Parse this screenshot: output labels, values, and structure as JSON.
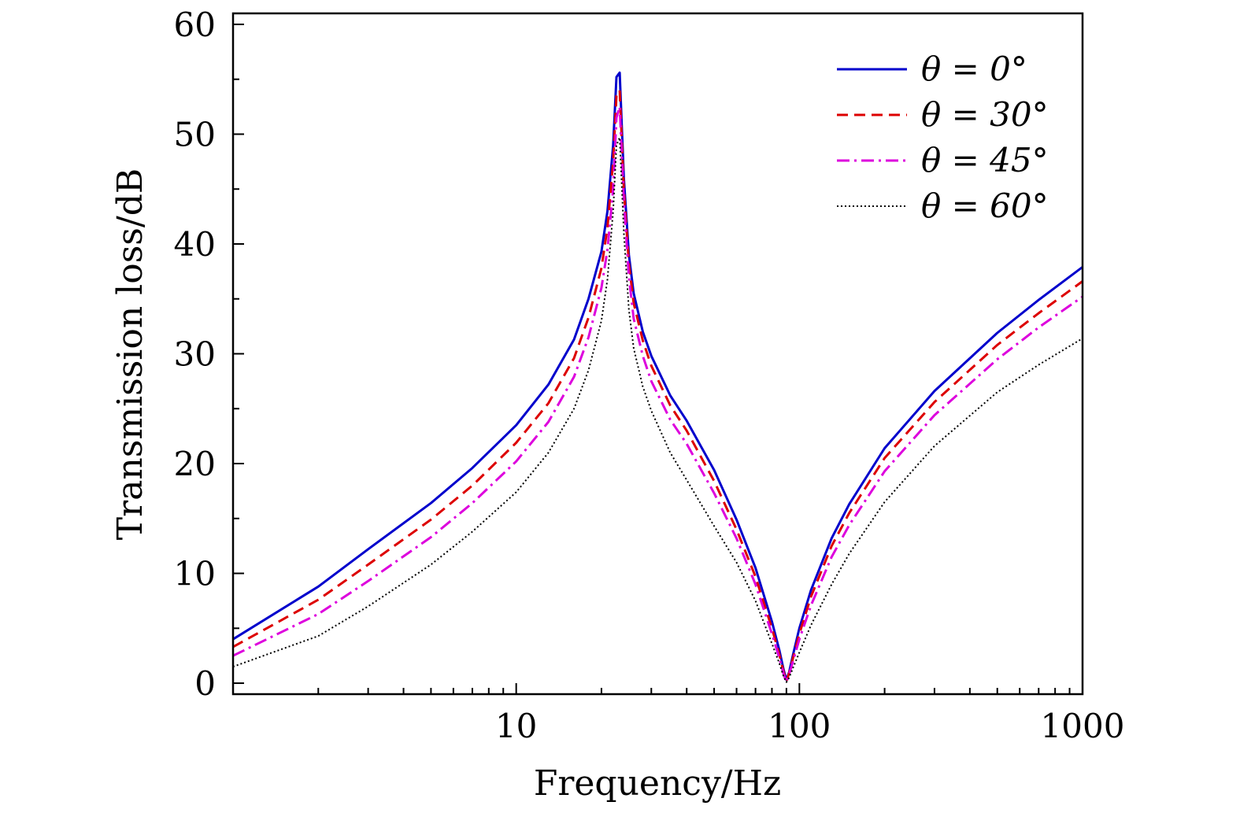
{
  "chart_data": {
    "type": "line",
    "title": "",
    "xlabel": "Frequency/Hz",
    "ylabel": "Transmission loss/dB",
    "x_scale": "log",
    "xlim": [
      1,
      1000
    ],
    "ylim": [
      -1,
      61
    ],
    "x_ticks": [
      10,
      100,
      1000
    ],
    "x_tick_labels": [
      "10",
      "100",
      "1000"
    ],
    "y_ticks": [
      0,
      10,
      20,
      30,
      40,
      50,
      60
    ],
    "y_tick_labels": [
      "0",
      "10",
      "20",
      "30",
      "40",
      "50",
      "60"
    ],
    "grid": false,
    "legend_position": "top-right",
    "series": [
      {
        "name": "θ = 0°",
        "color": "#0000cc",
        "dash": "solid",
        "x": [
          1,
          2,
          3,
          5,
          7,
          10,
          13,
          16,
          18,
          20,
          21,
          22,
          22.6,
          23.2,
          24,
          25,
          26,
          28,
          30,
          35,
          40,
          50,
          60,
          70,
          80,
          85,
          88,
          90,
          92,
          95,
          100,
          110,
          130,
          150,
          200,
          300,
          500,
          700,
          1000
        ],
        "y": [
          4.0,
          8.8,
          12.2,
          16.4,
          19.6,
          23.5,
          27.2,
          31.3,
          35.0,
          39.3,
          43.0,
          49.0,
          55.2,
          55.6,
          46.0,
          39.0,
          35.5,
          32.0,
          29.8,
          26.2,
          23.9,
          19.4,
          14.9,
          10.5,
          5.6,
          3.0,
          1.2,
          0.3,
          1.0,
          2.6,
          5.0,
          8.5,
          13.2,
          16.3,
          21.4,
          26.6,
          31.9,
          34.9,
          37.9
        ]
      },
      {
        "name": "θ = 30°",
        "color": "#dd0000",
        "dash": "dashed",
        "x": [
          1,
          2,
          3,
          5,
          7,
          10,
          13,
          16,
          18,
          20,
          21,
          22,
          22.6,
          23.2,
          24,
          25,
          26,
          28,
          30,
          35,
          40,
          50,
          60,
          70,
          80,
          85,
          88,
          90,
          92,
          95,
          100,
          110,
          130,
          150,
          200,
          300,
          500,
          700,
          1000
        ],
        "y": [
          3.3,
          7.6,
          10.8,
          14.9,
          18.0,
          21.9,
          25.5,
          29.6,
          33.3,
          37.8,
          41.5,
          47.5,
          53.5,
          54.0,
          45.0,
          38.2,
          34.6,
          31.2,
          28.9,
          25.3,
          23.0,
          18.4,
          14.0,
          9.7,
          5.0,
          2.6,
          1.0,
          0.2,
          0.9,
          2.3,
          4.5,
          7.9,
          12.5,
          15.5,
          20.5,
          25.6,
          30.8,
          33.7,
          36.6
        ]
      },
      {
        "name": "θ = 45°",
        "color": "#dd00dd",
        "dash": "dashdot",
        "x": [
          1,
          2,
          3,
          5,
          7,
          10,
          13,
          16,
          18,
          20,
          21,
          22,
          22.6,
          23.2,
          24,
          25,
          26,
          28,
          30,
          35,
          40,
          50,
          60,
          70,
          80,
          85,
          88,
          90,
          92,
          95,
          100,
          110,
          130,
          150,
          200,
          300,
          500,
          700,
          1000
        ],
        "y": [
          2.5,
          6.3,
          9.3,
          13.3,
          16.4,
          20.2,
          23.8,
          27.9,
          31.5,
          36.0,
          39.5,
          45.0,
          51.5,
          52.5,
          44.0,
          37.0,
          33.2,
          29.8,
          27.5,
          24.0,
          21.8,
          17.3,
          13.2,
          9.0,
          4.5,
          2.3,
          0.8,
          0.1,
          0.8,
          2.0,
          4.0,
          7.1,
          11.5,
          14.4,
          19.3,
          24.4,
          29.5,
          32.4,
          35.2
        ]
      },
      {
        "name": "θ = 60°",
        "color": "#000000",
        "dash": "dotted",
        "x": [
          1,
          2,
          3,
          5,
          7,
          10,
          13,
          16,
          18,
          20,
          21,
          22,
          22.6,
          23.2,
          24,
          25,
          26,
          28,
          30,
          35,
          40,
          50,
          60,
          70,
          80,
          85,
          88,
          90,
          92,
          95,
          100,
          110,
          130,
          150,
          200,
          300,
          500,
          700,
          1000
        ],
        "y": [
          1.5,
          4.3,
          7.0,
          10.8,
          13.8,
          17.4,
          21.0,
          25.0,
          28.5,
          33.0,
          36.8,
          43.0,
          49.0,
          49.7,
          41.0,
          34.0,
          30.5,
          27.0,
          24.8,
          21.0,
          18.5,
          14.3,
          11.0,
          7.5,
          3.6,
          1.8,
          0.6,
          0.1,
          0.5,
          1.4,
          2.8,
          5.3,
          9.0,
          11.8,
          16.5,
          21.6,
          26.5,
          29.0,
          31.4
        ]
      }
    ]
  }
}
